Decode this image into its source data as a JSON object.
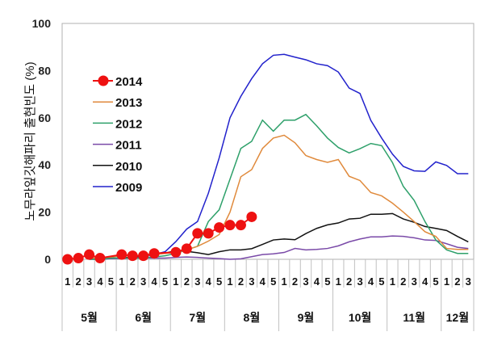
{
  "chart_data": {
    "type": "line",
    "title": "",
    "ylabel": "노무라잎깃해파리 출현빈도 (%)",
    "xlabel": "",
    "ylim": [
      0,
      100
    ],
    "yticks": [
      0,
      20,
      40,
      60,
      80,
      100
    ],
    "grid": false,
    "legend_placement": "upper-left",
    "months": [
      {
        "label": "5월",
        "weeks": [
          "1",
          "2",
          "3",
          "4",
          "5"
        ]
      },
      {
        "label": "6월",
        "weeks": [
          "1",
          "2",
          "3",
          "4",
          "5"
        ]
      },
      {
        "label": "7월",
        "weeks": [
          "1",
          "2",
          "3",
          "4",
          "5"
        ]
      },
      {
        "label": "8월",
        "weeks": [
          "1",
          "2",
          "3",
          "4",
          "5"
        ]
      },
      {
        "label": "9월",
        "weeks": [
          "1",
          "2",
          "3",
          "4",
          "5"
        ]
      },
      {
        "label": "10월",
        "weeks": [
          "1",
          "2",
          "3",
          "4",
          "5"
        ]
      },
      {
        "label": "11월",
        "weeks": [
          "1",
          "2",
          "3",
          "4",
          "5"
        ]
      },
      {
        "label": "12월",
        "weeks": [
          "1",
          "2",
          "3"
        ]
      }
    ],
    "series": [
      {
        "name": "2014",
        "color": "#ee1111",
        "marker": "circle",
        "values": [
          0,
          0.5,
          2,
          0.5,
          null,
          2,
          1.5,
          1.5,
          2.5,
          null,
          3,
          4.5,
          11,
          11,
          13.5,
          14.5,
          14.5,
          18,
          null,
          null,
          null,
          null,
          null,
          null,
          null,
          null,
          null,
          null,
          null,
          null,
          null,
          null,
          null,
          null,
          null,
          null,
          null,
          null
        ]
      },
      {
        "name": "2013",
        "color": "#e08a3c",
        "values": [
          null,
          null,
          0.5,
          0.5,
          1,
          1.5,
          1.5,
          1.5,
          2,
          2.5,
          3,
          4,
          5.5,
          7.7,
          10.5,
          20,
          35,
          38,
          47,
          51.4,
          52.6,
          49.4,
          44,
          42.3,
          41.1,
          42.3,
          35.2,
          33.4,
          28.3,
          26.9,
          23.8,
          20,
          16,
          11.7,
          9.7,
          4.6,
          4.2,
          4.2
        ]
      },
      {
        "name": "2012",
        "color": "#2ea06a",
        "values": [
          null,
          null,
          0,
          0,
          0.5,
          0.5,
          0.5,
          0.5,
          1,
          1.5,
          2.5,
          4,
          5.5,
          16,
          21,
          34,
          47,
          50,
          59,
          54.3,
          59,
          59,
          61.4,
          56.6,
          51.4,
          47.4,
          45.1,
          46.9,
          49.1,
          48.2,
          41,
          30.9,
          25,
          16,
          8.2,
          4,
          2.5,
          2.5
        ]
      },
      {
        "name": "2011",
        "color": "#7a4aa8",
        "values": [
          null,
          null,
          0.3,
          0.3,
          0.3,
          0.3,
          0.5,
          0.5,
          0.5,
          0.5,
          0.8,
          1,
          0.8,
          0.5,
          0.3,
          0,
          0.2,
          1.1,
          2,
          2.3,
          2.9,
          4.6,
          4,
          4.2,
          4.6,
          5.7,
          7.4,
          8.6,
          9.5,
          9.5,
          9.9,
          9.7,
          9.1,
          8.2,
          8,
          6.6,
          5.1,
          4.6
        ]
      },
      {
        "name": "2010",
        "color": "#111111",
        "values": [
          null,
          null,
          0.5,
          0.5,
          0.5,
          0.5,
          1,
          1.5,
          2,
          2.6,
          3.7,
          3.4,
          2.8,
          2,
          3.2,
          4,
          4,
          4.5,
          6.3,
          8.2,
          8.6,
          8.3,
          10.9,
          13.1,
          14.6,
          15.4,
          17.1,
          17.4,
          19.1,
          19.1,
          19.4,
          17.1,
          15.7,
          13.9,
          13.1,
          12.2,
          9.7,
          7.4
        ]
      },
      {
        "name": "2009",
        "color": "#2222cc",
        "values": [
          null,
          null,
          0,
          0,
          0.3,
          0.5,
          0.5,
          1,
          2,
          3.2,
          7.5,
          12.8,
          16,
          28,
          43,
          60,
          69.1,
          76.6,
          82.9,
          86.5,
          86.9,
          85.7,
          84.6,
          82.9,
          82.1,
          79.4,
          72.6,
          70.3,
          58.9,
          51.4,
          44.6,
          39.4,
          37.5,
          37.3,
          41.3,
          39.8,
          36.3,
          36.3
        ]
      }
    ]
  }
}
